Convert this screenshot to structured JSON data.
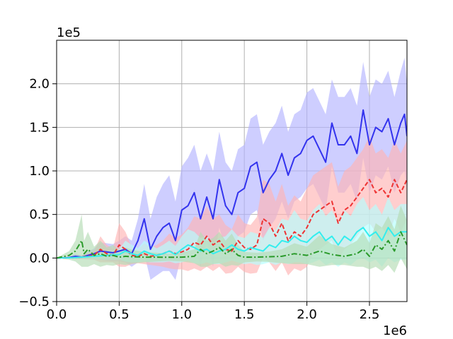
{
  "chart_data": {
    "type": "line",
    "title": "",
    "xlabel": "",
    "ylabel": "",
    "xlim": [
      0,
      2800000
    ],
    "ylim": [
      -50000,
      250000
    ],
    "x_ticks": [
      0,
      500000,
      1000000,
      1500000,
      2000000,
      2500000
    ],
    "x_tick_labels": [
      "0.0",
      "0.5",
      "1.0",
      "1.5",
      "2.0",
      "2.5"
    ],
    "y_ticks": [
      -50000,
      0,
      50000,
      100000,
      150000,
      200000
    ],
    "y_tick_labels": [
      "−0.5",
      "0.0",
      "0.5",
      "1.0",
      "1.5",
      "2.0"
    ],
    "x_offset_label": "1e6",
    "y_offset_label": "1e5",
    "grid": true,
    "legend": "none",
    "series": [
      {
        "color": "#3333ee",
        "band_color": "#b3b3ff",
        "dash": "solid",
        "points": [
          [
            0,
            0
          ],
          [
            100000,
            500
          ],
          [
            150000,
            2000
          ],
          [
            200000,
            1000
          ],
          [
            250000,
            3000
          ],
          [
            300000,
            5000
          ],
          [
            350000,
            8000
          ],
          [
            400000,
            7000
          ],
          [
            450000,
            6000
          ],
          [
            500000,
            8000
          ],
          [
            550000,
            10000
          ],
          [
            600000,
            5000
          ],
          [
            650000,
            20000
          ],
          [
            700000,
            45000
          ],
          [
            750000,
            10000
          ],
          [
            800000,
            25000
          ],
          [
            850000,
            35000
          ],
          [
            900000,
            40000
          ],
          [
            950000,
            20000
          ],
          [
            1000000,
            55000
          ],
          [
            1050000,
            60000
          ],
          [
            1100000,
            75000
          ],
          [
            1150000,
            45000
          ],
          [
            1200000,
            70000
          ],
          [
            1250000,
            45000
          ],
          [
            1300000,
            90000
          ],
          [
            1350000,
            60000
          ],
          [
            1400000,
            50000
          ],
          [
            1450000,
            75000
          ],
          [
            1500000,
            80000
          ],
          [
            1550000,
            105000
          ],
          [
            1600000,
            110000
          ],
          [
            1650000,
            75000
          ],
          [
            1700000,
            90000
          ],
          [
            1750000,
            100000
          ],
          [
            1800000,
            120000
          ],
          [
            1850000,
            95000
          ],
          [
            1900000,
            115000
          ],
          [
            1950000,
            120000
          ],
          [
            2000000,
            135000
          ],
          [
            2050000,
            140000
          ],
          [
            2100000,
            125000
          ],
          [
            2150000,
            110000
          ],
          [
            2200000,
            155000
          ],
          [
            2250000,
            130000
          ],
          [
            2300000,
            130000
          ],
          [
            2350000,
            140000
          ],
          [
            2400000,
            120000
          ],
          [
            2450000,
            170000
          ],
          [
            2500000,
            130000
          ],
          [
            2550000,
            150000
          ],
          [
            2600000,
            145000
          ],
          [
            2650000,
            160000
          ],
          [
            2700000,
            130000
          ],
          [
            2750000,
            155000
          ],
          [
            2780000,
            165000
          ],
          [
            2800000,
            140000
          ]
        ],
        "band_width": [
          0,
          1000,
          3000,
          2000,
          4000,
          6000,
          10000,
          10000,
          10000,
          12000,
          15000,
          15000,
          25000,
          40000,
          35000,
          45000,
          50000,
          55000,
          45000,
          50000,
          55000,
          55000,
          55000,
          50000,
          55000,
          55000,
          50000,
          50000,
          50000,
          50000,
          55000,
          55000,
          55000,
          55000,
          55000,
          55000,
          50000,
          50000,
          50000,
          55000,
          55000,
          55000,
          55000,
          50000,
          55000,
          55000,
          55000,
          55000,
          55000,
          55000,
          55000,
          55000,
          55000,
          55000,
          60000,
          65000,
          60000
        ]
      },
      {
        "color": "#ee3333",
        "band_color": "#ffb3b3",
        "dash": "dashed",
        "points": [
          [
            0,
            0
          ],
          [
            100000,
            200
          ],
          [
            200000,
            1000
          ],
          [
            300000,
            3000
          ],
          [
            350000,
            10000
          ],
          [
            400000,
            5000
          ],
          [
            450000,
            3000
          ],
          [
            500000,
            15000
          ],
          [
            550000,
            10000
          ],
          [
            600000,
            3000
          ],
          [
            650000,
            2000
          ],
          [
            700000,
            5000
          ],
          [
            750000,
            2000
          ],
          [
            800000,
            3000
          ],
          [
            850000,
            5000
          ],
          [
            900000,
            8000
          ],
          [
            950000,
            5000
          ],
          [
            1000000,
            7000
          ],
          [
            1050000,
            10000
          ],
          [
            1100000,
            18000
          ],
          [
            1150000,
            15000
          ],
          [
            1200000,
            25000
          ],
          [
            1250000,
            15000
          ],
          [
            1300000,
            20000
          ],
          [
            1350000,
            10000
          ],
          [
            1400000,
            8000
          ],
          [
            1450000,
            20000
          ],
          [
            1500000,
            12000
          ],
          [
            1550000,
            10000
          ],
          [
            1600000,
            15000
          ],
          [
            1650000,
            45000
          ],
          [
            1700000,
            40000
          ],
          [
            1750000,
            25000
          ],
          [
            1800000,
            40000
          ],
          [
            1850000,
            20000
          ],
          [
            1900000,
            30000
          ],
          [
            1950000,
            25000
          ],
          [
            2000000,
            35000
          ],
          [
            2050000,
            50000
          ],
          [
            2100000,
            55000
          ],
          [
            2150000,
            60000
          ],
          [
            2200000,
            65000
          ],
          [
            2250000,
            40000
          ],
          [
            2300000,
            55000
          ],
          [
            2350000,
            60000
          ],
          [
            2400000,
            70000
          ],
          [
            2450000,
            80000
          ],
          [
            2500000,
            90000
          ],
          [
            2550000,
            75000
          ],
          [
            2600000,
            80000
          ],
          [
            2650000,
            70000
          ],
          [
            2700000,
            90000
          ],
          [
            2750000,
            75000
          ],
          [
            2800000,
            90000
          ]
        ],
        "band_width": [
          0,
          500,
          2000,
          5000,
          15000,
          10000,
          8000,
          25000,
          20000,
          10000,
          8000,
          12000,
          10000,
          12000,
          15000,
          20000,
          18000,
          20000,
          25000,
          30000,
          30000,
          35000,
          30000,
          30000,
          28000,
          25000,
          30000,
          28000,
          28000,
          32000,
          45000,
          45000,
          40000,
          45000,
          40000,
          42000,
          40000,
          45000,
          45000,
          45000,
          45000,
          45000,
          42000,
          45000,
          45000,
          45000,
          45000,
          50000,
          45000,
          45000,
          45000,
          45000,
          45000,
          45000
        ]
      },
      {
        "color": "#33eeee",
        "band_color": "#b3ffff",
        "dash": "solid",
        "points": [
          [
            0,
            0
          ],
          [
            100000,
            200
          ],
          [
            200000,
            1000
          ],
          [
            300000,
            2000
          ],
          [
            400000,
            3000
          ],
          [
            500000,
            4000
          ],
          [
            550000,
            8000
          ],
          [
            600000,
            5000
          ],
          [
            650000,
            3000
          ],
          [
            700000,
            8000
          ],
          [
            750000,
            5000
          ],
          [
            800000,
            3000
          ],
          [
            850000,
            5000
          ],
          [
            900000,
            8000
          ],
          [
            950000,
            4000
          ],
          [
            1000000,
            10000
          ],
          [
            1050000,
            15000
          ],
          [
            1100000,
            12000
          ],
          [
            1150000,
            8000
          ],
          [
            1200000,
            10000
          ],
          [
            1250000,
            5000
          ],
          [
            1300000,
            8000
          ],
          [
            1350000,
            10000
          ],
          [
            1400000,
            15000
          ],
          [
            1450000,
            10000
          ],
          [
            1500000,
            8000
          ],
          [
            1550000,
            12000
          ],
          [
            1600000,
            10000
          ],
          [
            1650000,
            8000
          ],
          [
            1700000,
            15000
          ],
          [
            1750000,
            12000
          ],
          [
            1800000,
            20000
          ],
          [
            1850000,
            18000
          ],
          [
            1900000,
            25000
          ],
          [
            1950000,
            20000
          ],
          [
            2000000,
            18000
          ],
          [
            2050000,
            25000
          ],
          [
            2100000,
            30000
          ],
          [
            2150000,
            20000
          ],
          [
            2200000,
            25000
          ],
          [
            2250000,
            15000
          ],
          [
            2300000,
            25000
          ],
          [
            2350000,
            20000
          ],
          [
            2400000,
            30000
          ],
          [
            2450000,
            35000
          ],
          [
            2500000,
            25000
          ],
          [
            2550000,
            30000
          ],
          [
            2600000,
            20000
          ],
          [
            2650000,
            35000
          ],
          [
            2700000,
            25000
          ],
          [
            2750000,
            30000
          ],
          [
            2800000,
            30000
          ]
        ],
        "band_width": [
          0,
          500,
          1500,
          3000,
          5000,
          6000,
          12000,
          10000,
          8000,
          12000,
          10000,
          8000,
          10000,
          12000,
          10000,
          15000,
          18000,
          18000,
          15000,
          15000,
          12000,
          15000,
          15000,
          18000,
          15000,
          15000,
          18000,
          18000,
          15000,
          20000,
          20000,
          25000,
          25000,
          30000,
          25000,
          25000,
          30000,
          32000,
          28000,
          30000,
          25000,
          30000,
          28000,
          32000,
          35000,
          30000,
          32000,
          30000,
          35000,
          30000,
          32000,
          32000
        ]
      },
      {
        "color": "#2a9a2a",
        "band_color": "#b3dcb3",
        "dash": "dashdot",
        "points": [
          [
            0,
            0
          ],
          [
            100000,
            3000
          ],
          [
            150000,
            8000
          ],
          [
            200000,
            20000
          ],
          [
            220000,
            5000
          ],
          [
            250000,
            10000
          ],
          [
            300000,
            3000
          ],
          [
            350000,
            5000
          ],
          [
            400000,
            2000
          ],
          [
            450000,
            3000
          ],
          [
            500000,
            1000
          ],
          [
            550000,
            2000
          ],
          [
            600000,
            1500
          ],
          [
            700000,
            1000
          ],
          [
            800000,
            1000
          ],
          [
            900000,
            800
          ],
          [
            1000000,
            1000
          ],
          [
            1100000,
            2000
          ],
          [
            1150000,
            10000
          ],
          [
            1200000,
            5000
          ],
          [
            1250000,
            8000
          ],
          [
            1300000,
            12000
          ],
          [
            1350000,
            5000
          ],
          [
            1400000,
            10000
          ],
          [
            1450000,
            3000
          ],
          [
            1500000,
            1000
          ],
          [
            1600000,
            1000
          ],
          [
            1700000,
            1500
          ],
          [
            1800000,
            2000
          ],
          [
            1900000,
            5000
          ],
          [
            2000000,
            3000
          ],
          [
            2100000,
            8000
          ],
          [
            2200000,
            4000
          ],
          [
            2300000,
            2000
          ],
          [
            2400000,
            5000
          ],
          [
            2450000,
            10000
          ],
          [
            2500000,
            2000
          ],
          [
            2550000,
            15000
          ],
          [
            2600000,
            10000
          ],
          [
            2650000,
            20000
          ],
          [
            2700000,
            8000
          ],
          [
            2750000,
            30000
          ],
          [
            2800000,
            15000
          ]
        ],
        "band_width": [
          0,
          5000,
          12000,
          30000,
          15000,
          20000,
          10000,
          15000,
          10000,
          12000,
          8000,
          10000,
          8000,
          6000,
          5000,
          4000,
          5000,
          8000,
          20000,
          15000,
          15000,
          18000,
          15000,
          18000,
          12000,
          6000,
          5000,
          6000,
          8000,
          12000,
          10000,
          18000,
          12000,
          10000,
          15000,
          20000,
          15000,
          25000,
          25000,
          28000,
          25000,
          30000,
          28000
        ]
      }
    ]
  }
}
